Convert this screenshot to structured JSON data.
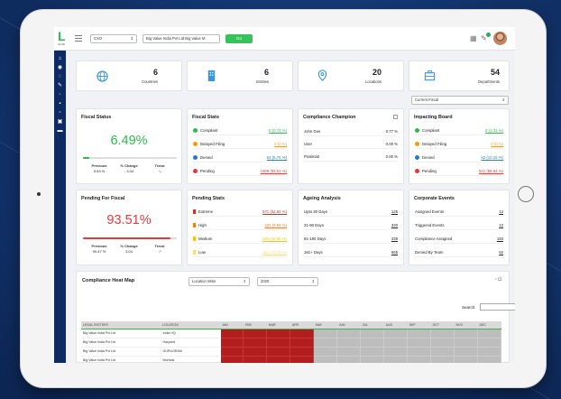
{
  "topbar": {
    "logo_letter": "L",
    "logo_sub": "GLUE",
    "entity_select": "CXO",
    "company_select": "Big Value India Pvt Ltd Big Value M",
    "go_label": "Go"
  },
  "counts": [
    {
      "value": "6",
      "label": "Countries",
      "icon": "globe-icon"
    },
    {
      "value": "6",
      "label": "Entities",
      "icon": "building-icon"
    },
    {
      "value": "20",
      "label": "Locations",
      "icon": "location-pin-icon"
    },
    {
      "value": "54",
      "label": "Departments",
      "icon": "department-icon"
    }
  ],
  "fiscal_select": "Current Fiscal",
  "fiscal_status": {
    "title": "Fiscal Status",
    "percent": "6.49%",
    "progress": 6.49,
    "color": "#2fb84f",
    "previous_label": "Previous",
    "previous_value": "9.53 %",
    "change_label": "% Change",
    "change_value": "- 3.04",
    "trend_label": "Trend"
  },
  "pending_fiscal": {
    "title": "Pending For Fiscal",
    "percent": "93.51%",
    "progress": 93.51,
    "color": "#e23a3a",
    "previous_label": "Previous",
    "previous_value": "90.47 %",
    "change_label": "% Change",
    "change_value": "3.04",
    "trend_label": "Trend"
  },
  "fiscal_stats": {
    "title": "Fiscal Stats",
    "rows": [
      {
        "label": "Compliant",
        "value": "8 (0.74 %)",
        "color": "#2fb84f"
      },
      {
        "label": "Delayed Filing",
        "value": "0 (0 %)",
        "color": "#f39c12"
      },
      {
        "label": "Denied",
        "value": "62 (5.75 %)",
        "color": "#2b78c5"
      },
      {
        "label": "Pending",
        "value": "1009 (93.51 %)",
        "color": "#e23a3a"
      }
    ]
  },
  "pending_stats": {
    "title": "Pending Stats",
    "rows": [
      {
        "label": "Extreme",
        "value": "571 (52.92 %)",
        "color": "#c0392b"
      },
      {
        "label": "High",
        "value": "103 (9.55 %)",
        "color": "#e67e22"
      },
      {
        "label": "Medium",
        "value": "183 (16.96 %)",
        "color": "#f1c40f"
      },
      {
        "label": "Low",
        "value": "152 (14.09 %)",
        "color": "#f7dc6f"
      }
    ]
  },
  "compliance_champion": {
    "title": "Compliance Champion",
    "rows": [
      {
        "label": "John Doe",
        "value": "0.77 %"
      },
      {
        "label": "User",
        "value": "0.00 %"
      },
      {
        "label": "Pratima0",
        "value": "0.00 %"
      }
    ]
  },
  "ageing": {
    "title": "Ageing Analysis",
    "rows": [
      {
        "label": "Upto 30 Days",
        "value": "125"
      },
      {
        "label": "31-90 Days",
        "value": "320"
      },
      {
        "label": "91-180 Days",
        "value": "339"
      },
      {
        "label": "181+ Days",
        "value": "665"
      }
    ]
  },
  "impacting_board": {
    "title": "Impacting Board",
    "rows": [
      {
        "label": "Compliant",
        "value": "8 (1.31 %)",
        "color": "#2fb84f"
      },
      {
        "label": "Delayed Filing",
        "value": "0 (0 %)",
        "color": "#f39c12"
      },
      {
        "label": "Denied",
        "value": "62 (10.15 %)",
        "color": "#2b78c5"
      },
      {
        "label": "Pending",
        "value": "541 (88.54 %)",
        "color": "#e23a3a"
      }
    ]
  },
  "corporate_events": {
    "title": "Corporate Events",
    "rows": [
      {
        "label": "Assigned Events",
        "value": "12"
      },
      {
        "label": "Triggered Events",
        "value": "12"
      },
      {
        "label": "Compliance Assigned",
        "value": "193"
      },
      {
        "label": "Denied By Team",
        "value": "52"
      }
    ]
  },
  "heatmap": {
    "title": "Compliance Heat Map",
    "select_view": "Location Wise",
    "select_year": "2020",
    "search_label": "Search:",
    "columns": [
      "LEGAL ENTITIES",
      "LOCATION",
      "JAN",
      "FEB",
      "MAR",
      "APR",
      "MAY",
      "JUN",
      "JUL",
      "AUG",
      "SEP",
      "OCT",
      "NOV",
      "DEC"
    ],
    "rows": [
      {
        "entity": "Big Value India Pvt Ltd",
        "location": "India HQ"
      },
      {
        "entity": "Big Value India Pvt Ltd",
        "location": "Haryana"
      },
      {
        "entity": "Big Value India Pvt Ltd",
        "location": "GURUGRAM"
      },
      {
        "entity": "Big Value India Pvt Ltd",
        "location": "Mumbai"
      }
    ]
  }
}
